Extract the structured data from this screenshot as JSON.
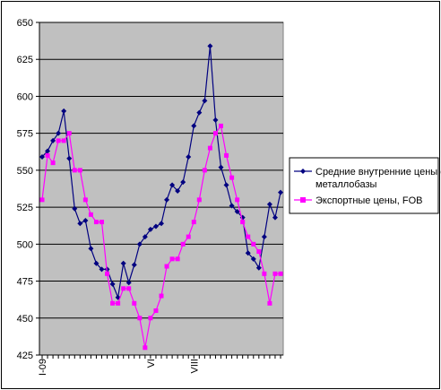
{
  "chart_data": {
    "type": "line",
    "title": "",
    "xlabel": "",
    "ylabel": "",
    "ylim": [
      425,
      650
    ],
    "yticks": [
      425,
      450,
      475,
      500,
      525,
      550,
      575,
      600,
      625,
      650
    ],
    "grid": "horizontal",
    "legend_position": "right",
    "x_tick_labels": [
      {
        "label": "I-09",
        "index": 0
      },
      {
        "label": "VI",
        "index": 20
      },
      {
        "label": "VIII",
        "index": 28
      }
    ],
    "series": [
      {
        "name": "Средние внутренние цены с металлобазы",
        "color": "#000080",
        "marker": "diamond",
        "values": [
          559,
          563,
          570,
          575,
          590,
          558,
          524,
          514,
          516,
          497,
          487,
          483,
          483,
          473,
          464,
          487,
          474,
          486,
          500,
          505,
          510,
          512,
          514,
          530,
          540,
          536,
          542,
          559,
          580,
          589,
          597,
          634,
          584,
          552,
          540,
          526,
          522,
          518,
          494,
          490,
          484,
          505,
          527,
          518,
          535
        ]
      },
      {
        "name": "Экспортные цены, FOB",
        "color": "#ff00ff",
        "marker": "square",
        "values": [
          530,
          560,
          555,
          570,
          570,
          575,
          550,
          550,
          530,
          520,
          515,
          515,
          480,
          460,
          460,
          470,
          470,
          460,
          450,
          430,
          450,
          455,
          465,
          485,
          490,
          490,
          500,
          505,
          515,
          530,
          550,
          565,
          575,
          580,
          560,
          545,
          530,
          515,
          505,
          500,
          495,
          480,
          460,
          480,
          480
        ]
      }
    ]
  }
}
